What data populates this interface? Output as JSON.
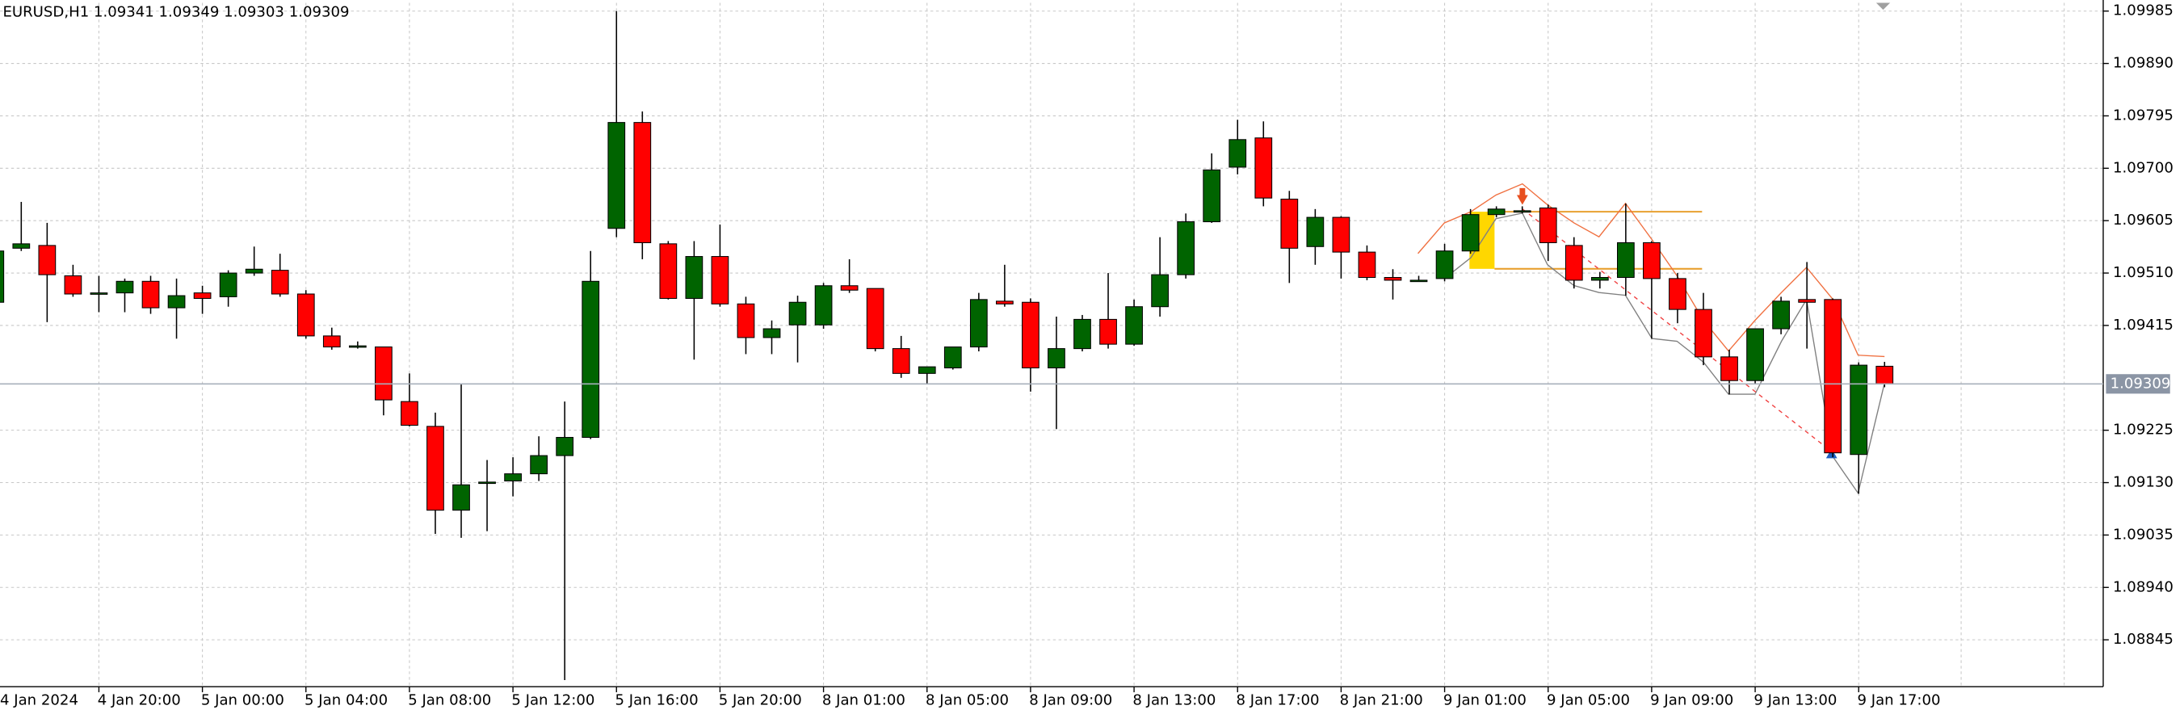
{
  "chart_data": {
    "type": "candlestick",
    "title": "EURUSD,H1  1.09341 1.09349 1.09303 1.09309",
    "categories": [
      "4 Jan 2024",
      null,
      null,
      null,
      "4 Jan 20:00",
      null,
      null,
      null,
      "5 Jan 00:00",
      null,
      null,
      null,
      "5 Jan 04:00",
      null,
      null,
      null,
      "5 Jan 08:00",
      null,
      null,
      null,
      "5 Jan 12:00",
      null,
      null,
      null,
      "5 Jan 16:00",
      null,
      null,
      null,
      "5 Jan 20:00",
      null,
      null,
      null,
      "8 Jan 01:00",
      null,
      null,
      null,
      "8 Jan 05:00",
      null,
      null,
      null,
      "8 Jan 09:00",
      null,
      null,
      null,
      "8 Jan 13:00",
      null,
      null,
      null,
      "8 Jan 17:00",
      null,
      null,
      null,
      "8 Jan 21:00",
      null,
      null,
      null,
      "9 Jan 01:00",
      null,
      null,
      null,
      "9 Jan 05:00",
      null,
      null,
      null,
      "9 Jan 09:00",
      null,
      null,
      null,
      "9 Jan 13:00",
      null,
      null,
      null,
      "9 Jan 17:00",
      null
    ],
    "open": [
      1.09457,
      1.09555,
      1.0956,
      1.09505,
      1.09474,
      1.09474,
      1.09495,
      1.09447,
      1.09474,
      1.09467,
      1.0951,
      1.09515,
      1.09472,
      1.09396,
      1.09378,
      1.09376,
      1.09277,
      1.09232,
      1.0908,
      1.09131,
      1.09133,
      1.09146,
      1.09179,
      1.09212,
      1.09591,
      1.09783,
      1.09563,
      1.09464,
      1.0954,
      1.09454,
      1.09393,
      1.09416,
      1.09416,
      1.09487,
      1.09482,
      1.09373,
      1.09328,
      1.09338,
      1.09376,
      1.09459,
      1.09457,
      1.09338,
      1.09373,
      1.09426,
      1.09381,
      1.09449,
      1.09507,
      1.09603,
      1.09702,
      1.09755,
      1.09644,
      1.09558,
      1.09611,
      1.09548,
      1.09502,
      1.09497,
      1.095,
      1.0955,
      1.09616,
      1.09623,
      1.09628,
      1.0956,
      1.09497,
      1.09502,
      1.09565,
      1.095,
      1.09444,
      1.09358,
      1.09315,
      1.09409,
      1.09462,
      1.09462,
      1.09181,
      1.09341
    ],
    "high": [
      1.09563,
      1.09639,
      1.09601,
      1.09525,
      1.09505,
      1.095,
      1.09505,
      1.095,
      1.09487,
      1.09515,
      1.09558,
      1.09545,
      1.09479,
      1.09411,
      1.09386,
      1.09376,
      1.09328,
      1.09257,
      1.09308,
      1.09171,
      1.09176,
      1.09214,
      1.09277,
      1.0955,
      1.09985,
      1.09803,
      1.09568,
      1.09568,
      1.09598,
      1.09467,
      1.09424,
      1.09469,
      1.09492,
      1.09535,
      1.09482,
      1.09396,
      1.0934,
      1.09376,
      1.09474,
      1.09525,
      1.09464,
      1.09431,
      1.09434,
      1.0951,
      1.09462,
      1.09575,
      1.09618,
      1.09727,
      1.09788,
      1.09785,
      1.09659,
      1.09626,
      1.09613,
      1.0956,
      1.09517,
      1.09505,
      1.09563,
      1.09626,
      1.09631,
      1.09631,
      1.09634,
      1.09575,
      1.09512,
      1.09636,
      1.09568,
      1.0951,
      1.09474,
      1.09371,
      1.09409,
      1.09467,
      1.0953,
      1.09464,
      1.09348,
      1.09349
    ],
    "low": [
      1.09454,
      1.0955,
      1.09421,
      1.09467,
      1.09439,
      1.09439,
      1.09436,
      1.09391,
      1.09436,
      1.09449,
      1.09505,
      1.09467,
      1.09391,
      1.09371,
      1.09373,
      1.09252,
      1.09232,
      1.09037,
      1.0903,
      1.09042,
      1.09105,
      1.09133,
      1.08772,
      1.09209,
      1.09575,
      1.09535,
      1.09462,
      1.09353,
      1.09449,
      1.09363,
      1.09363,
      1.09348,
      1.09409,
      1.09474,
      1.09368,
      1.0932,
      1.09308,
      1.09335,
      1.09368,
      1.09449,
      1.09295,
      1.09227,
      1.09368,
      1.09373,
      1.09378,
      1.09431,
      1.095,
      1.09601,
      1.09689,
      1.09631,
      1.09492,
      1.09525,
      1.095,
      1.09497,
      1.09462,
      1.09495,
      1.09495,
      1.09545,
      1.09611,
      1.09618,
      1.09532,
      1.09482,
      1.09482,
      1.09469,
      1.09391,
      1.09419,
      1.09343,
      1.0929,
      1.0931,
      1.09399,
      1.09373,
      1.09176,
      1.0911,
      1.09303
    ],
    "close": [
      1.0955,
      1.09563,
      1.09507,
      1.09472,
      1.09474,
      1.09495,
      1.09447,
      1.09469,
      1.09464,
      1.0951,
      1.09517,
      1.09472,
      1.09396,
      1.09376,
      1.09378,
      1.0928,
      1.09234,
      1.0908,
      1.09126,
      1.09131,
      1.09146,
      1.09179,
      1.09212,
      1.09495,
      1.09783,
      1.09565,
      1.09464,
      1.0954,
      1.09454,
      1.09393,
      1.09409,
      1.09457,
      1.09487,
      1.09479,
      1.09373,
      1.09328,
      1.0934,
      1.09376,
      1.09462,
      1.09454,
      1.09338,
      1.09373,
      1.09426,
      1.09381,
      1.09449,
      1.09507,
      1.09603,
      1.09697,
      1.09752,
      1.09646,
      1.09555,
      1.09611,
      1.09548,
      1.09502,
      1.09497,
      1.09497,
      1.0955,
      1.09616,
      1.09626,
      1.09623,
      1.09565,
      1.09497,
      1.09502,
      1.09565,
      1.095,
      1.09444,
      1.09358,
      1.09315,
      1.09409,
      1.09459,
      1.09457,
      1.09184,
      1.09343,
      1.09309
    ],
    "up_color": "#006400",
    "down_color": "#ff0000",
    "current_price": 1.09309,
    "ylim": [
      1.0876,
      1.1
    ],
    "yticks": [
      1.09985,
      {
        "value": 1.0989,
        "label": "1.09890"
      },
      1.09795,
      {
        "value": 1.097,
        "label": "1.09700"
      },
      1.09605,
      {
        "value": 1.0951,
        "label": "1.09510"
      },
      1.09415,
      1.09225,
      {
        "value": 1.0913,
        "label": "1.09130"
      },
      1.09035,
      {
        "value": 1.0894,
        "label": "1.08940"
      },
      1.08845
    ],
    "grid": true
  }
}
